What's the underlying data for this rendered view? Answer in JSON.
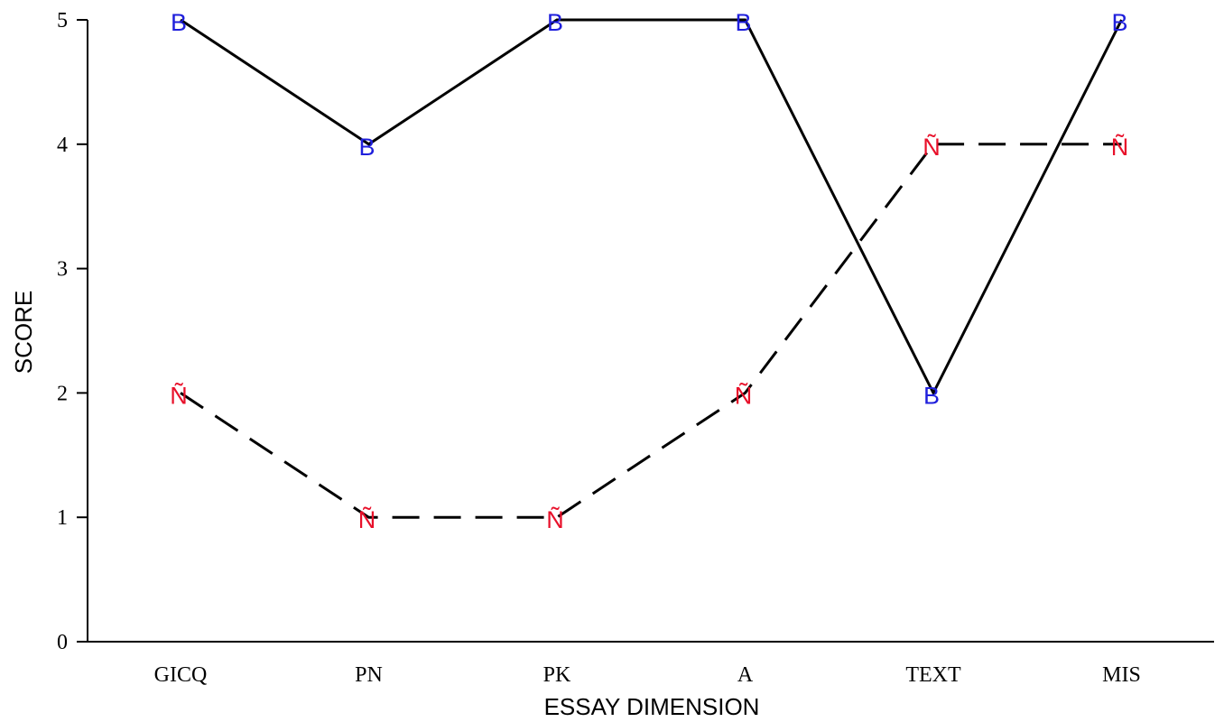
{
  "chart_data": {
    "type": "line",
    "xlabel": "ESSAY DIMENSION",
    "ylabel": "SCORE",
    "categories": [
      "GICQ",
      "PN",
      "PK",
      "A",
      "TEXT",
      "MIS"
    ],
    "ylim": [
      0,
      5
    ],
    "yticks": [
      "0",
      "1",
      "2",
      "3",
      "4",
      "5"
    ],
    "grid": false,
    "series": [
      {
        "marker": "B",
        "color": "#1f1fdc",
        "line": "solid",
        "values": [
          5,
          4,
          5,
          5,
          2,
          5
        ]
      },
      {
        "marker": "Ñ",
        "color": "#e8102a",
        "line": "dashed",
        "values": [
          2,
          1,
          1,
          2,
          4,
          4
        ]
      }
    ]
  }
}
